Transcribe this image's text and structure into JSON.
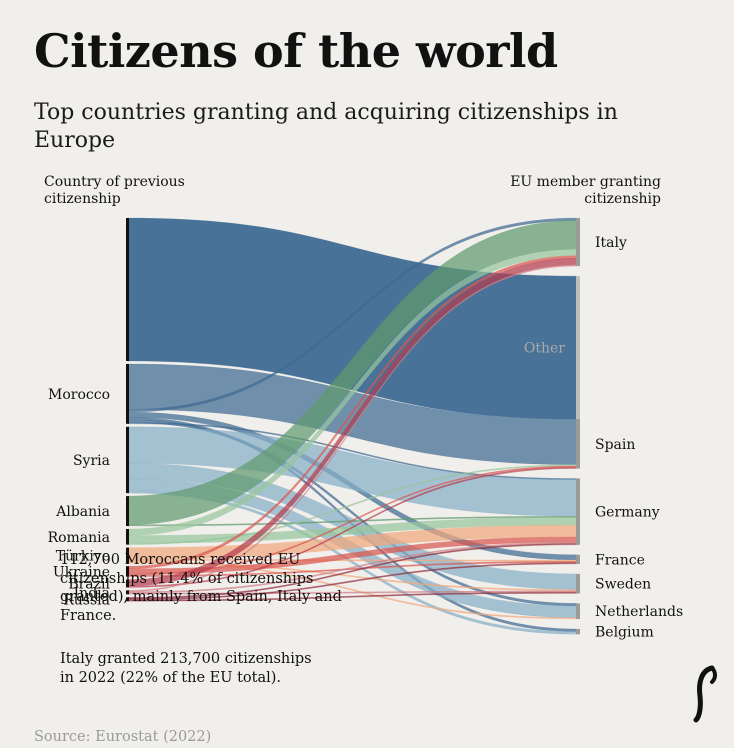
{
  "title": "Citizens of the world",
  "subtitle": "Top countries granting and acquiring citizenships in Europe",
  "left_header": [
    "Country of previous",
    "citizenship"
  ],
  "right_header": [
    "EU member granting",
    "citizenship"
  ],
  "notes": {
    "note1": "112,700 Moroccans received EU citizenships (11.4% of citizenships granted), mainly from Spain, Italy and France.",
    "note2": "Italy granted 213,700 citizenships in 2022 (22% of the EU total)."
  },
  "source": "Source: Eurostat (2022)",
  "chart_data": {
    "type": "sankey",
    "title": "Citizens of the world",
    "units": "thousand citizenships (approximate)",
    "sources": [
      {
        "name": "Morocco",
        "color": "#3e6a92",
        "label_visible": true
      },
      {
        "name": "Syria",
        "color": "#86aec6",
        "label_visible": true
      },
      {
        "name": "Albania",
        "color": "#5f9a6e",
        "label_visible": true
      },
      {
        "name": "Romania",
        "color": "#97c69d",
        "label_visible": true
      },
      {
        "name": "Türkiye",
        "color": "#f1a77c",
        "label_visible": true
      },
      {
        "name": "Ukraine",
        "color": "#d9574f",
        "label_visible": true
      },
      {
        "name": "Brazil",
        "color": "#b63c4e",
        "label_visible": true
      },
      {
        "name": "India",
        "color": "#cf7f86",
        "label_visible": true
      },
      {
        "name": "Russia",
        "color": "#8e2e3e",
        "label_visible": true
      },
      {
        "name": "Other",
        "color": "#3e6a92",
        "label_visible": false
      }
    ],
    "targets": [
      {
        "name": "Italy",
        "label_visible": true,
        "total": 213.7
      },
      {
        "name": "Other",
        "label_visible": true,
        "total": 0
      },
      {
        "name": "Spain",
        "label_visible": true,
        "total": 0
      },
      {
        "name": "Germany",
        "label_visible": true,
        "total": 0
      },
      {
        "name": "France",
        "label_visible": true,
        "total": 0
      },
      {
        "name": "Sweden",
        "label_visible": true,
        "total": 0
      },
      {
        "name": "Netherlands",
        "label_visible": true,
        "total": 0
      },
      {
        "name": "Belgium",
        "label_visible": true,
        "total": 0
      }
    ],
    "flows": [
      {
        "source": "Other",
        "target": "Other",
        "value": 110
      },
      {
        "source": "Morocco",
        "target": "Spain",
        "value": 35
      },
      {
        "source": "Morocco",
        "target": "Italy",
        "value": 2
      },
      {
        "source": "Morocco",
        "target": "France",
        "value": 4
      },
      {
        "source": "Morocco",
        "target": "Belgium",
        "value": 2
      },
      {
        "source": "Morocco",
        "target": "Netherlands",
        "value": 2
      },
      {
        "source": "Morocco",
        "target": "Germany",
        "value": 1
      },
      {
        "source": "Syria",
        "target": "Germany",
        "value": 28
      },
      {
        "source": "Syria",
        "target": "Sweden",
        "value": 12
      },
      {
        "source": "Syria",
        "target": "Netherlands",
        "value": 9
      },
      {
        "source": "Syria",
        "target": "Belgium",
        "value": 2
      },
      {
        "source": "Albania",
        "target": "Italy",
        "value": 22
      },
      {
        "source": "Albania",
        "target": "Germany",
        "value": 1
      },
      {
        "source": "Romania",
        "target": "Italy",
        "value": 5
      },
      {
        "source": "Romania",
        "target": "Germany",
        "value": 6
      },
      {
        "source": "Romania",
        "target": "Spain",
        "value": 1
      },
      {
        "source": "Türkiye",
        "target": "Germany",
        "value": 9
      },
      {
        "source": "Türkiye",
        "target": "France",
        "value": 1
      },
      {
        "source": "Türkiye",
        "target": "Netherlands",
        "value": 1
      },
      {
        "source": "Türkiye",
        "target": "Sweden",
        "value": 1
      },
      {
        "source": "Ukraine",
        "target": "Italy",
        "value": 2
      },
      {
        "source": "Ukraine",
        "target": "Germany",
        "value": 4
      },
      {
        "source": "Ukraine",
        "target": "Spain",
        "value": 1
      },
      {
        "source": "Ukraine",
        "target": "France",
        "value": 1
      },
      {
        "source": "Brazil",
        "target": "Italy",
        "value": 5
      },
      {
        "source": "Brazil",
        "target": "Spain",
        "value": 1
      },
      {
        "source": "India",
        "target": "Italy",
        "value": 1
      },
      {
        "source": "India",
        "target": "Germany",
        "value": 1
      },
      {
        "source": "India",
        "target": "Sweden",
        "value": 1
      },
      {
        "source": "Russia",
        "target": "Germany",
        "value": 1
      },
      {
        "source": "Russia",
        "target": "France",
        "value": 1
      },
      {
        "source": "Russia",
        "target": "Sweden",
        "value": 1
      }
    ]
  }
}
